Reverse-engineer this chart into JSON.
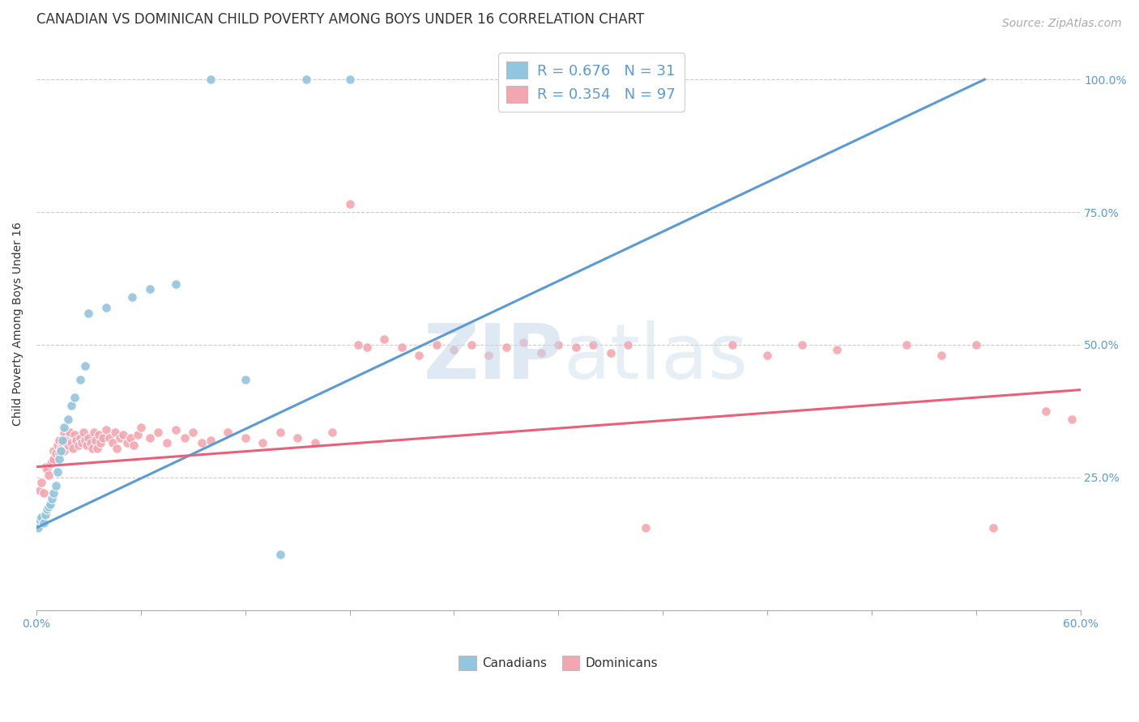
{
  "title": "CANADIAN VS DOMINICAN CHILD POVERTY AMONG BOYS UNDER 16 CORRELATION CHART",
  "source": "Source: ZipAtlas.com",
  "ylabel": "Child Poverty Among Boys Under 16",
  "xlim": [
    0.0,
    0.6
  ],
  "ylim": [
    0.0,
    1.08
  ],
  "xtick_vals": [
    0.0,
    0.06,
    0.12,
    0.18,
    0.24,
    0.3,
    0.36,
    0.42,
    0.48,
    0.54,
    0.6
  ],
  "ytick_vals": [
    0.0,
    0.25,
    0.5,
    0.75,
    1.0
  ],
  "ytick_labels_right": [
    "",
    "25.0%",
    "50.0%",
    "75.0%",
    "100.0%"
  ],
  "canadian_color": "#92c5de",
  "dominican_color": "#f4a6b0",
  "canadian_line_color": "#5b9bd5",
  "dominican_line_color": "#e8607a",
  "can_line_x": [
    0.0,
    0.545
  ],
  "can_line_y": [
    0.155,
    1.0
  ],
  "dom_line_x": [
    0.0,
    0.6
  ],
  "dom_line_y": [
    0.27,
    0.415
  ],
  "canadians": [
    [
      0.001,
      0.155
    ],
    [
      0.002,
      0.17
    ],
    [
      0.003,
      0.175
    ],
    [
      0.004,
      0.165
    ],
    [
      0.005,
      0.18
    ],
    [
      0.006,
      0.19
    ],
    [
      0.007,
      0.195
    ],
    [
      0.008,
      0.2
    ],
    [
      0.009,
      0.21
    ],
    [
      0.01,
      0.22
    ],
    [
      0.011,
      0.235
    ],
    [
      0.012,
      0.26
    ],
    [
      0.013,
      0.285
    ],
    [
      0.014,
      0.3
    ],
    [
      0.015,
      0.32
    ],
    [
      0.016,
      0.345
    ],
    [
      0.018,
      0.36
    ],
    [
      0.02,
      0.385
    ],
    [
      0.022,
      0.4
    ],
    [
      0.025,
      0.435
    ],
    [
      0.028,
      0.46
    ],
    [
      0.03,
      0.56
    ],
    [
      0.04,
      0.57
    ],
    [
      0.055,
      0.59
    ],
    [
      0.065,
      0.605
    ],
    [
      0.08,
      0.615
    ],
    [
      0.1,
      1.0
    ],
    [
      0.12,
      0.435
    ],
    [
      0.14,
      0.105
    ],
    [
      0.155,
      1.0
    ],
    [
      0.18,
      1.0
    ]
  ],
  "dominicans": [
    [
      0.002,
      0.225
    ],
    [
      0.003,
      0.24
    ],
    [
      0.004,
      0.22
    ],
    [
      0.005,
      0.27
    ],
    [
      0.006,
      0.265
    ],
    [
      0.007,
      0.255
    ],
    [
      0.008,
      0.275
    ],
    [
      0.009,
      0.28
    ],
    [
      0.01,
      0.285
    ],
    [
      0.01,
      0.3
    ],
    [
      0.011,
      0.295
    ],
    [
      0.012,
      0.31
    ],
    [
      0.013,
      0.295
    ],
    [
      0.013,
      0.32
    ],
    [
      0.014,
      0.305
    ],
    [
      0.015,
      0.315
    ],
    [
      0.016,
      0.3
    ],
    [
      0.016,
      0.335
    ],
    [
      0.017,
      0.32
    ],
    [
      0.018,
      0.31
    ],
    [
      0.019,
      0.335
    ],
    [
      0.02,
      0.315
    ],
    [
      0.021,
      0.305
    ],
    [
      0.022,
      0.33
    ],
    [
      0.023,
      0.32
    ],
    [
      0.024,
      0.31
    ],
    [
      0.025,
      0.325
    ],
    [
      0.026,
      0.315
    ],
    [
      0.027,
      0.335
    ],
    [
      0.028,
      0.32
    ],
    [
      0.029,
      0.31
    ],
    [
      0.03,
      0.325
    ],
    [
      0.031,
      0.315
    ],
    [
      0.032,
      0.305
    ],
    [
      0.033,
      0.335
    ],
    [
      0.034,
      0.32
    ],
    [
      0.035,
      0.305
    ],
    [
      0.036,
      0.33
    ],
    [
      0.037,
      0.315
    ],
    [
      0.038,
      0.325
    ],
    [
      0.04,
      0.34
    ],
    [
      0.042,
      0.325
    ],
    [
      0.044,
      0.315
    ],
    [
      0.045,
      0.335
    ],
    [
      0.046,
      0.305
    ],
    [
      0.048,
      0.325
    ],
    [
      0.05,
      0.33
    ],
    [
      0.052,
      0.315
    ],
    [
      0.054,
      0.325
    ],
    [
      0.056,
      0.31
    ],
    [
      0.058,
      0.33
    ],
    [
      0.06,
      0.345
    ],
    [
      0.065,
      0.325
    ],
    [
      0.07,
      0.335
    ],
    [
      0.075,
      0.315
    ],
    [
      0.08,
      0.34
    ],
    [
      0.085,
      0.325
    ],
    [
      0.09,
      0.335
    ],
    [
      0.095,
      0.315
    ],
    [
      0.1,
      0.32
    ],
    [
      0.11,
      0.335
    ],
    [
      0.12,
      0.325
    ],
    [
      0.13,
      0.315
    ],
    [
      0.14,
      0.335
    ],
    [
      0.15,
      0.325
    ],
    [
      0.16,
      0.315
    ],
    [
      0.17,
      0.335
    ],
    [
      0.18,
      0.765
    ],
    [
      0.185,
      0.5
    ],
    [
      0.19,
      0.495
    ],
    [
      0.2,
      0.51
    ],
    [
      0.21,
      0.495
    ],
    [
      0.22,
      0.48
    ],
    [
      0.23,
      0.5
    ],
    [
      0.24,
      0.49
    ],
    [
      0.25,
      0.5
    ],
    [
      0.26,
      0.48
    ],
    [
      0.27,
      0.495
    ],
    [
      0.28,
      0.505
    ],
    [
      0.29,
      0.485
    ],
    [
      0.3,
      0.5
    ],
    [
      0.31,
      0.495
    ],
    [
      0.32,
      0.5
    ],
    [
      0.33,
      0.485
    ],
    [
      0.34,
      0.5
    ],
    [
      0.35,
      0.155
    ],
    [
      0.4,
      0.5
    ],
    [
      0.42,
      0.48
    ],
    [
      0.44,
      0.5
    ],
    [
      0.46,
      0.49
    ],
    [
      0.5,
      0.5
    ],
    [
      0.52,
      0.48
    ],
    [
      0.54,
      0.5
    ],
    [
      0.55,
      0.155
    ],
    [
      0.58,
      0.375
    ],
    [
      0.595,
      0.36
    ]
  ],
  "background_color": "#ffffff",
  "grid_color": "#cccccc",
  "title_fontsize": 12,
  "label_fontsize": 10,
  "tick_fontsize": 10,
  "source_fontsize": 10
}
